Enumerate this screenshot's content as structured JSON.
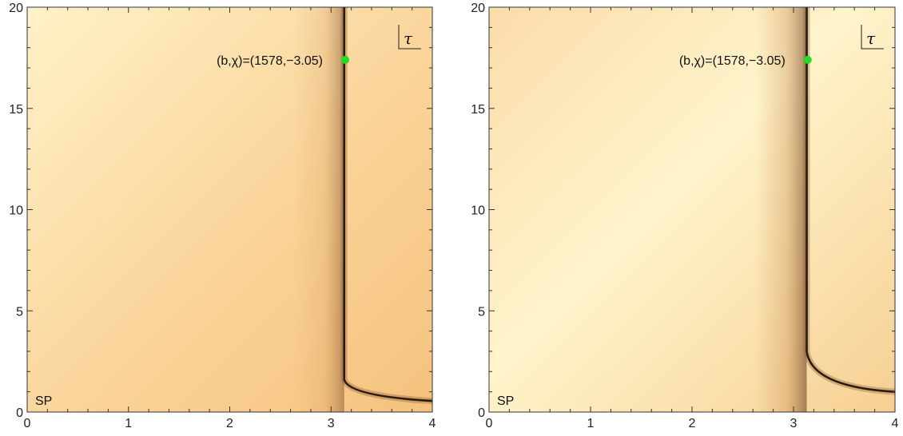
{
  "chart_data": [
    {
      "type": "heatmap",
      "panel": "left",
      "xlim": [
        0,
        4
      ],
      "ylim": [
        0,
        20
      ],
      "x_ticks": [
        0,
        1,
        2,
        3,
        4
      ],
      "y_ticks": [
        0,
        5,
        10,
        15,
        20
      ],
      "corner_label": "SP",
      "legend_symbol": "τ",
      "point": {
        "x": 3.14,
        "y": 17.4,
        "label": "(b,χ)=(1578,−3.05)",
        "color": "#22dd22"
      },
      "ridge": {
        "x_vertical": 3.13,
        "bend_y": 1.6,
        "end": [
          4,
          0.55
        ]
      },
      "colors": {
        "light": "#fff2c8",
        "mid": "#fad49a",
        "dark": "#2a1a10"
      }
    },
    {
      "type": "heatmap",
      "panel": "right",
      "xlim": [
        0,
        4
      ],
      "ylim": [
        0,
        20
      ],
      "x_ticks": [
        0,
        1,
        2,
        3,
        4
      ],
      "y_ticks": [
        0,
        5,
        10,
        15,
        20
      ],
      "corner_label": "SP",
      "legend_symbol": "τ",
      "point": {
        "x": 3.14,
        "y": 17.4,
        "label": "(b,χ)=(1578,−3.05)",
        "color": "#22dd22"
      },
      "ridge": {
        "x_vertical": 3.13,
        "bend_y": 3.0,
        "end": [
          4,
          1.0
        ]
      },
      "colors": {
        "light": "#fff4cc",
        "mid": "#f6cf92",
        "dark": "#2a1a10"
      }
    }
  ]
}
